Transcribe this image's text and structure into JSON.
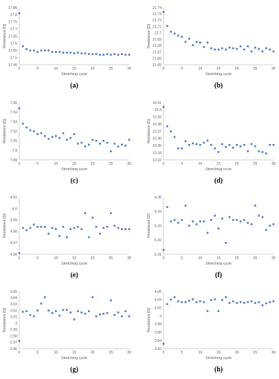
{
  "chart_data": [
    {
      "type": "scatter",
      "panel_label": "(a)",
      "xlabel": "Stretching cycle",
      "ylabel": "Resistance [Ω]",
      "xlim": [
        0,
        30
      ],
      "ylim": [
        17.45,
        17.85
      ],
      "yticks": [
        "17.45",
        "17.5",
        "17.55",
        "17.6",
        "17.65",
        "17.7",
        "17.75",
        "17.8",
        "17.85"
      ],
      "xticks": [
        "0",
        "5",
        "10",
        "15",
        "20",
        "25",
        "30"
      ],
      "grid": false,
      "legend": "none",
      "x": [
        0,
        1,
        2,
        3,
        4,
        5,
        6,
        7,
        8,
        9,
        10,
        11,
        12,
        13,
        14,
        15,
        16,
        17,
        18,
        19,
        20,
        21,
        22,
        23,
        24,
        25,
        26,
        27,
        28,
        29,
        30
      ],
      "y": [
        17.81,
        17.58,
        17.56,
        17.55,
        17.55,
        17.54,
        17.55,
        17.55,
        17.55,
        17.54,
        17.54,
        17.54,
        17.535,
        17.535,
        17.535,
        17.53,
        17.535,
        17.53,
        17.53,
        17.525,
        17.525,
        17.525,
        17.52,
        17.52,
        17.525,
        17.52,
        17.525,
        17.52,
        17.525,
        17.52,
        17.52
      ]
    },
    {
      "type": "scatter",
      "panel_label": "(b)",
      "xlabel": "Stretching cycle",
      "ylabel": "Resistance [Ω]",
      "xlim": [
        0,
        30
      ],
      "ylim": [
        21.65,
        21.74
      ],
      "yticks": [
        "21.65",
        "21.66",
        "21.67",
        "21.68",
        "21.69",
        "21.7",
        "21.71",
        "21.72",
        "21.73",
        "21.74"
      ],
      "xticks": [
        "0",
        "5",
        "10",
        "15",
        "20",
        "25",
        "30"
      ],
      "grid": false,
      "legend": "none",
      "x": [
        0,
        1,
        2,
        3,
        4,
        5,
        6,
        7,
        8,
        9,
        10,
        11,
        12,
        13,
        14,
        15,
        16,
        17,
        18,
        19,
        20,
        21,
        22,
        23,
        24,
        25,
        26,
        27,
        28,
        29,
        30
      ],
      "y": [
        21.733,
        21.711,
        21.702,
        21.699,
        21.696,
        21.694,
        21.686,
        21.691,
        21.681,
        21.686,
        21.685,
        21.678,
        21.685,
        21.676,
        21.674,
        21.674,
        21.676,
        21.674,
        21.677,
        21.676,
        21.675,
        21.679,
        21.674,
        21.679,
        21.671,
        21.677,
        21.675,
        21.671,
        21.676,
        21.674,
        21.671
      ]
    },
    {
      "type": "scatter",
      "panel_label": "(c)",
      "xlabel": "Stretching cycle",
      "ylabel": "Resistance [Ω]",
      "xlim": [
        0,
        30
      ],
      "ylim": [
        7.89,
        7.95
      ],
      "yticks": [
        "7.89",
        "7.9",
        "7.91",
        "7.92",
        "7.93",
        "7.94",
        "7.95"
      ],
      "xticks": [
        "0",
        "5",
        "10",
        "15",
        "20",
        "25",
        "30"
      ],
      "grid": false,
      "legend": "none",
      "x": [
        0,
        1,
        2,
        3,
        4,
        5,
        6,
        7,
        8,
        9,
        10,
        11,
        12,
        13,
        14,
        15,
        16,
        17,
        18,
        19,
        20,
        21,
        22,
        23,
        24,
        25,
        26,
        27,
        28,
        29,
        30
      ],
      "y": [
        7.944,
        7.928,
        7.924,
        7.921,
        7.92,
        7.917,
        7.918,
        7.915,
        7.912,
        7.914,
        7.915,
        7.913,
        7.918,
        7.911,
        7.913,
        7.917,
        7.907,
        7.908,
        7.904,
        7.906,
        7.911,
        7.91,
        7.907,
        7.91,
        7.908,
        7.899,
        7.907,
        7.904,
        7.906,
        7.905,
        7.911
      ]
    },
    {
      "type": "scatter",
      "panel_label": "(d)",
      "xlabel": "Stretching cycle",
      "ylabel": "Resistance [Ω]",
      "xlim": [
        0,
        30
      ],
      "ylim": [
        10.33,
        10.41
      ],
      "yticks": [
        "10.33",
        "10.34",
        "10.35",
        "10.36",
        "10.37",
        "10.38",
        "10.39",
        "10.4",
        "10.41"
      ],
      "xticks": [
        "0",
        "5",
        "10",
        "15",
        "20",
        "25",
        "30"
      ],
      "grid": false,
      "legend": "none",
      "x": [
        0,
        1,
        2,
        3,
        4,
        5,
        6,
        7,
        8,
        9,
        10,
        11,
        12,
        13,
        14,
        15,
        16,
        17,
        18,
        19,
        20,
        21,
        22,
        23,
        24,
        25,
        26,
        27,
        28,
        29,
        30
      ],
      "y": [
        10.404,
        10.377,
        10.37,
        10.362,
        10.346,
        10.346,
        10.356,
        10.351,
        10.353,
        10.352,
        10.351,
        10.354,
        10.357,
        10.351,
        10.346,
        10.341,
        10.352,
        10.348,
        10.351,
        10.347,
        10.351,
        10.349,
        10.351,
        10.342,
        10.352,
        10.349,
        10.342,
        10.341,
        10.339,
        10.351,
        10.351
      ]
    },
    {
      "type": "scatter",
      "panel_label": "(e)",
      "xlabel": "Stretching cycle",
      "ylabel": "Resistance [Ω]",
      "xlim": [
        0,
        30
      ],
      "ylim": [
        4.56,
        4.61
      ],
      "yticks": [
        "4.56",
        "4.57",
        "4.58",
        "4.59",
        "4.6",
        "4.61"
      ],
      "xticks": [
        "0",
        "5",
        "10",
        "15",
        "20",
        "25",
        "30"
      ],
      "grid": false,
      "legend": "none",
      "x": [
        0,
        1,
        2,
        3,
        4,
        5,
        6,
        7,
        8,
        9,
        10,
        11,
        12,
        13,
        14,
        15,
        16,
        17,
        18,
        19,
        20,
        21,
        22,
        23,
        24,
        25,
        26,
        27,
        28,
        29,
        30
      ],
      "y": [
        4.561,
        4.583,
        4.581,
        4.583,
        4.586,
        4.584,
        4.584,
        4.584,
        4.578,
        4.583,
        4.582,
        4.576,
        4.584,
        4.575,
        4.582,
        4.583,
        4.584,
        4.582,
        4.596,
        4.575,
        4.592,
        4.584,
        4.578,
        4.583,
        4.584,
        4.596,
        4.585,
        4.583,
        4.582,
        4.582,
        4.582
      ]
    },
    {
      "type": "scatter",
      "panel_label": "(f)",
      "xlabel": "Stretching cycle",
      "ylabel": "Resistance [Ω]",
      "xlim": [
        0,
        30
      ],
      "ylim": [
        6.31,
        6.35
      ],
      "yticks": [
        "6.31",
        "6.32",
        "6.33",
        "6.34",
        "6.35"
      ],
      "xticks": [
        "0",
        "5",
        "10",
        "15",
        "20",
        "25",
        "30"
      ],
      "grid": false,
      "legend": "none",
      "x": [
        0,
        1,
        2,
        3,
        4,
        5,
        6,
        7,
        8,
        9,
        10,
        11,
        12,
        13,
        14,
        15,
        16,
        17,
        18,
        19,
        20,
        21,
        22,
        23,
        24,
        25,
        26,
        27,
        28,
        29,
        30
      ],
      "y": [
        6.313,
        6.343,
        6.333,
        6.334,
        6.332,
        6.334,
        6.344,
        6.33,
        6.333,
        6.331,
        6.333,
        6.333,
        6.325,
        6.334,
        6.337,
        6.328,
        6.335,
        6.318,
        6.336,
        6.334,
        6.334,
        6.333,
        6.334,
        6.332,
        6.331,
        6.344,
        6.337,
        6.336,
        6.327,
        6.33,
        6.331
      ]
    },
    {
      "type": "scatter",
      "panel_label": "(g)",
      "xlabel": "Stretching cycle",
      "ylabel": "Resistance [Ω]",
      "xlim": [
        0,
        30
      ],
      "ylim": [
        2.96,
        3.05
      ],
      "yticks": [
        "2.96",
        "2.97",
        "2.98",
        "2.99",
        "3",
        "3.01",
        "3.02",
        "3.03",
        "3.04",
        "3.05"
      ],
      "xticks": [
        "0",
        "5",
        "10",
        "15",
        "20",
        "25",
        "30"
      ],
      "grid": false,
      "legend": "none",
      "x": [
        0,
        1,
        2,
        3,
        4,
        5,
        6,
        7,
        8,
        9,
        10,
        11,
        12,
        13,
        14,
        15,
        16,
        17,
        18,
        19,
        20,
        21,
        22,
        23,
        24,
        25,
        26,
        27,
        28,
        29,
        30
      ],
      "y": [
        2.972,
        3.018,
        3.019,
        3.013,
        3.011,
        3.02,
        3.031,
        3.041,
        3.02,
        3.016,
        3.019,
        3.012,
        3.021,
        3.021,
        3.017,
        3.006,
        3.019,
        3.017,
        3.015,
        3.019,
        3.041,
        3.011,
        3.014,
        3.015,
        3.016,
        3.036,
        3.013,
        3.017,
        3.011,
        3.019,
        3.011
      ]
    },
    {
      "type": "scatter",
      "panel_label": "(h)",
      "xlabel": "Stretching cycle",
      "ylabel": "Resistance [Ω]",
      "xlim": [
        0,
        30
      ],
      "ylim": [
        3.92,
        4.06
      ],
      "yticks": [
        "3.92",
        "3.94",
        "3.96",
        "3.98",
        "4",
        "4.02",
        "4.04",
        "4.06"
      ],
      "xticks": [
        "0",
        "5",
        "10",
        "15",
        "20",
        "25",
        "30"
      ],
      "grid": false,
      "legend": "none",
      "x": [
        0,
        1,
        2,
        3,
        4,
        5,
        6,
        7,
        8,
        9,
        10,
        11,
        12,
        13,
        14,
        15,
        16,
        17,
        18,
        19,
        20,
        21,
        22,
        23,
        24,
        25,
        26,
        27,
        28,
        29,
        30
      ],
      "y": [
        3.932,
        4.029,
        4.04,
        4.046,
        4.036,
        4.034,
        4.034,
        4.037,
        4.041,
        4.034,
        4.036,
        4.034,
        4.012,
        4.039,
        4.041,
        4.012,
        4.039,
        4.046,
        4.032,
        4.036,
        4.032,
        4.034,
        4.032,
        4.034,
        4.036,
        4.032,
        4.034,
        4.026,
        4.031,
        4.034,
        4.036
      ]
    }
  ]
}
